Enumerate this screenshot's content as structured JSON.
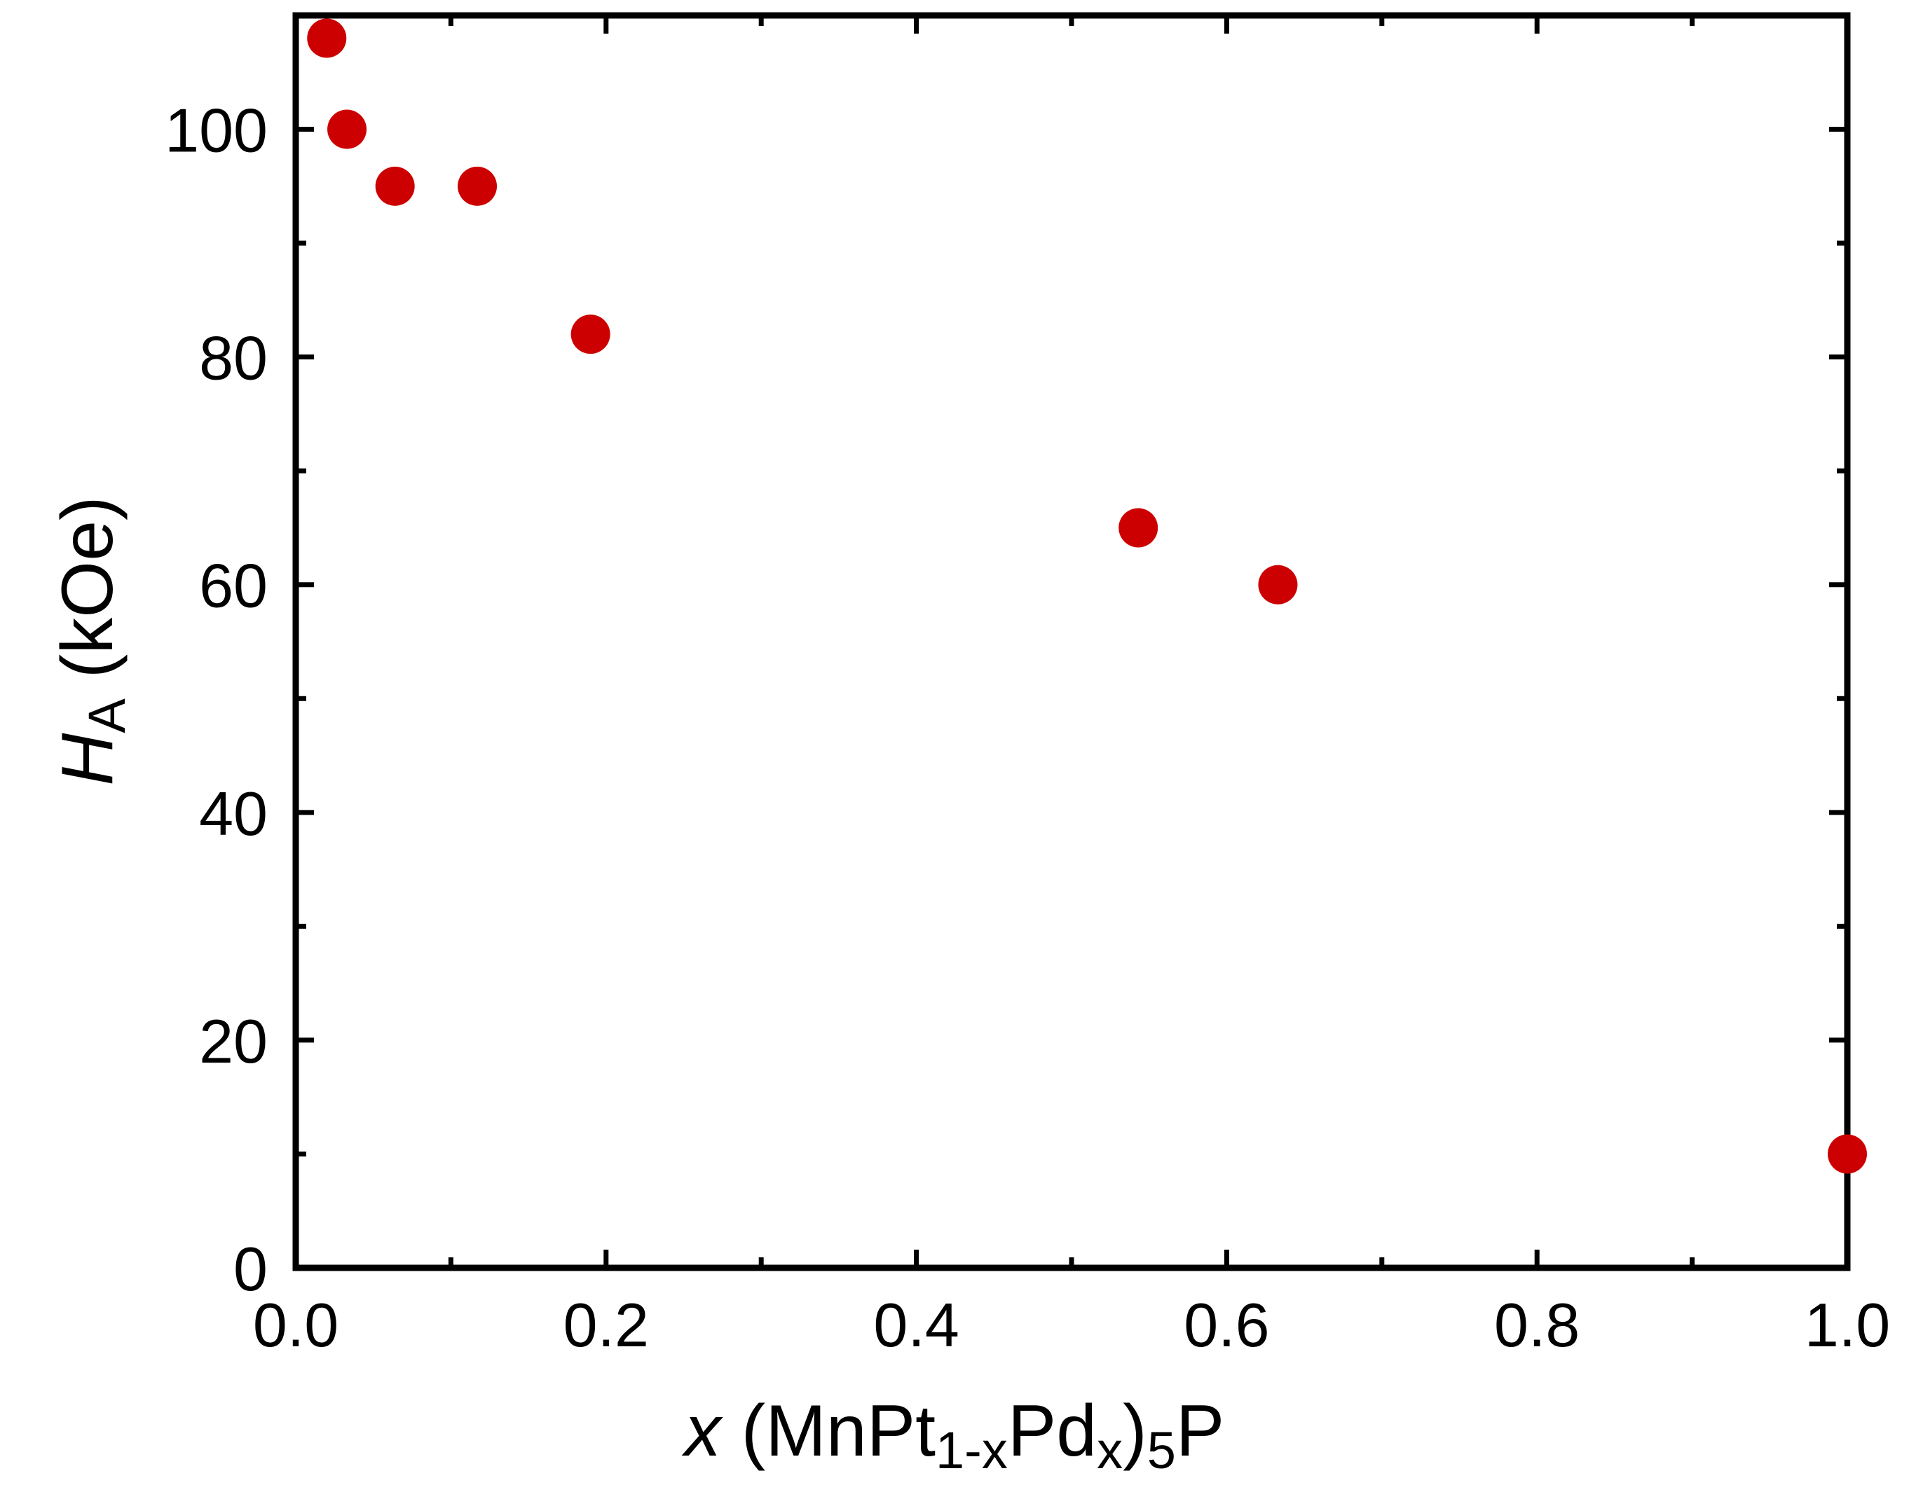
{
  "chart_data": {
    "type": "scatter",
    "title": "",
    "xlabel": {
      "var": "x",
      "formula": {
        "open": "(MnPt",
        "sub1": "1-x",
        "mid": "Pd",
        "sub2": "x",
        "close": ")",
        "sub3": "5",
        "tail": "P"
      }
    },
    "ylabel": {
      "var": "H",
      "sub": "A",
      "unit": " (kOe)"
    },
    "xlim": [
      0.0,
      1.0
    ],
    "ylim": [
      0,
      110
    ],
    "x_ticks": [
      0.0,
      0.2,
      0.4,
      0.6,
      0.8,
      1.0
    ],
    "x_tick_labels": [
      "0.0",
      "0.2",
      "0.4",
      "0.6",
      "0.8",
      "1.0"
    ],
    "x_minor_ticks": [
      0.1,
      0.3,
      0.5,
      0.7,
      0.9
    ],
    "y_ticks": [
      0,
      20,
      40,
      60,
      80,
      100
    ],
    "y_tick_labels": [
      "0",
      "20",
      "40",
      "60",
      "80",
      "100"
    ],
    "y_minor_ticks": [
      10,
      30,
      50,
      70,
      90
    ],
    "grid": false,
    "marker_color": "#cc0000",
    "series": [
      {
        "points": [
          {
            "x": 0.02,
            "y": 108
          },
          {
            "x": 0.033,
            "y": 100
          },
          {
            "x": 0.064,
            "y": 95
          },
          {
            "x": 0.117,
            "y": 95
          },
          {
            "x": 0.19,
            "y": 82
          },
          {
            "x": 0.543,
            "y": 65
          },
          {
            "x": 0.633,
            "y": 60
          },
          {
            "x": 1.0,
            "y": 10
          }
        ]
      }
    ]
  }
}
